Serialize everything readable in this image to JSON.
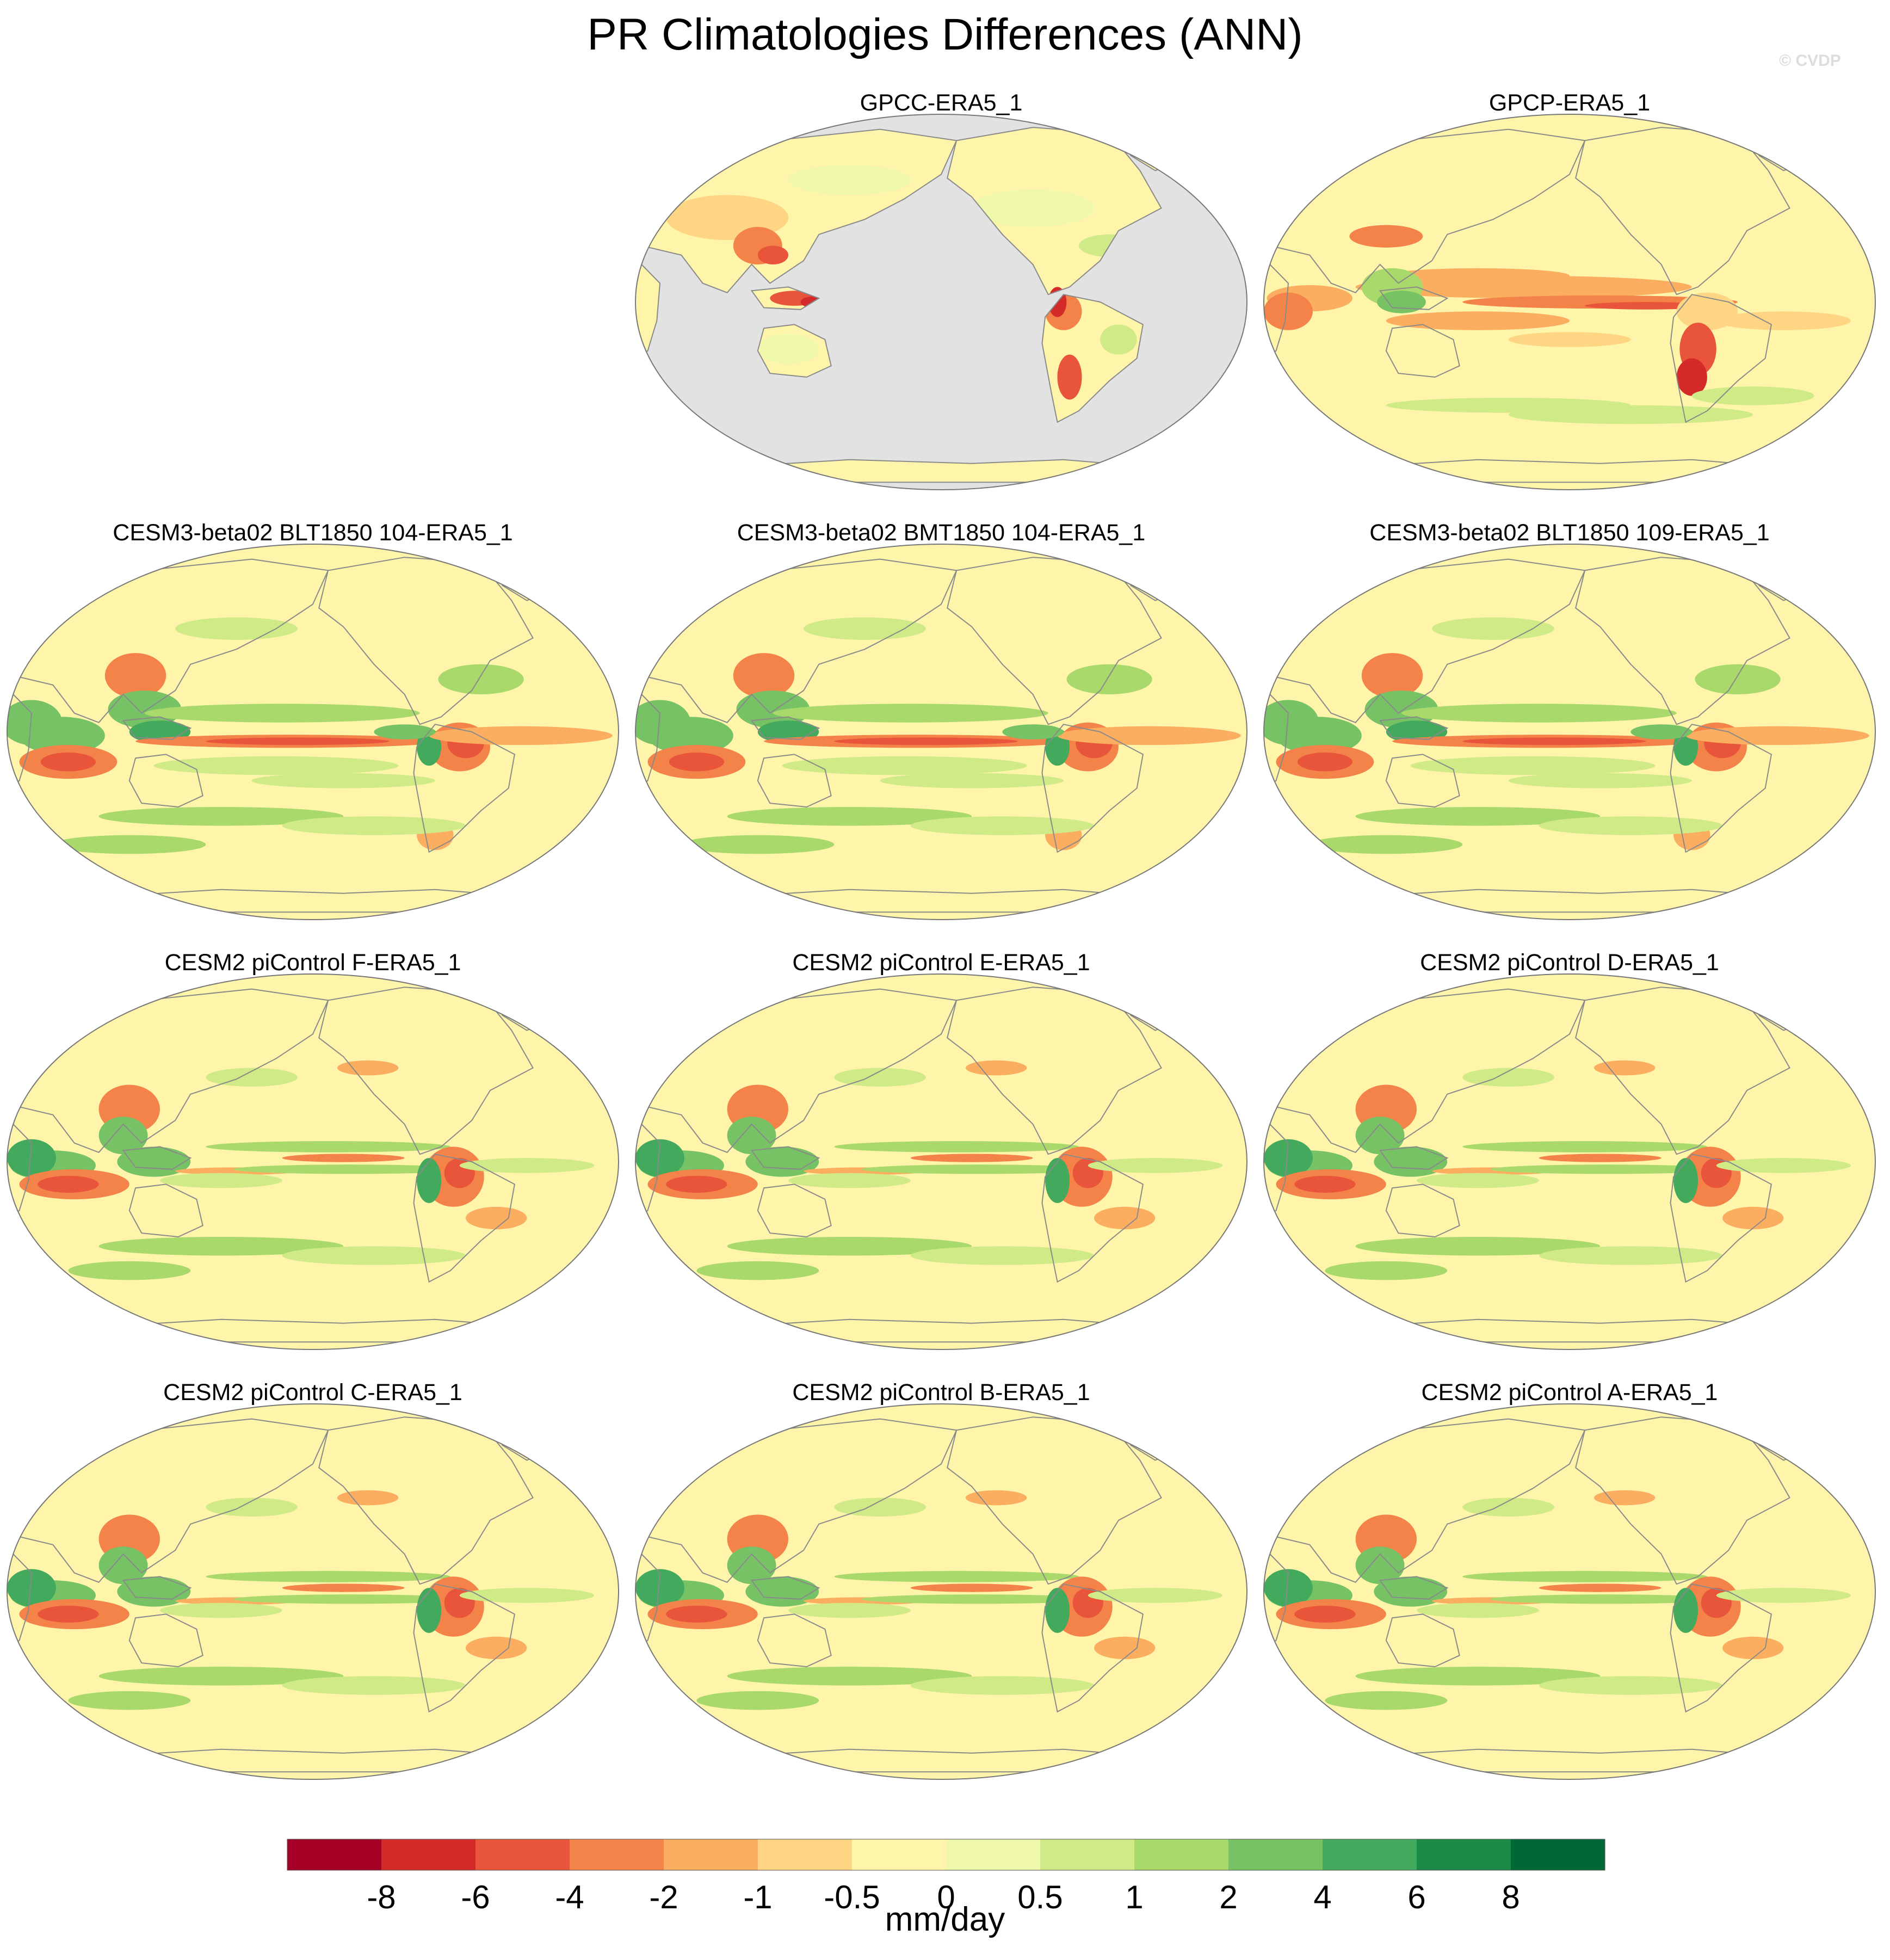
{
  "page": {
    "title": "PR Climatologies Differences (ANN)",
    "watermark": "© CVDP"
  },
  "chart_data": {
    "type": "heatmap",
    "title": "PR Climatologies Differences (ANN)",
    "projection": "Robinson, centered on Pacific",
    "panels": [
      {
        "title": "GPCC-ERA5_1",
        "row": 0,
        "col": 1,
        "variant": "land_only"
      },
      {
        "title": "GPCP-ERA5_1",
        "row": 0,
        "col": 2,
        "variant": "obs"
      },
      {
        "title": "CESM3-beta02 BLT1850 104-ERA5_1",
        "row": 1,
        "col": 0,
        "variant": "cesm3"
      },
      {
        "title": "CESM3-beta02 BMT1850 104-ERA5_1",
        "row": 1,
        "col": 1,
        "variant": "cesm3"
      },
      {
        "title": "CESM3-beta02 BLT1850 109-ERA5_1",
        "row": 1,
        "col": 2,
        "variant": "cesm3"
      },
      {
        "title": "CESM2 piControl F-ERA5_1",
        "row": 2,
        "col": 0,
        "variant": "cesm2"
      },
      {
        "title": "CESM2 piControl E-ERA5_1",
        "row": 2,
        "col": 1,
        "variant": "cesm2"
      },
      {
        "title": "CESM2 piControl D-ERA5_1",
        "row": 2,
        "col": 2,
        "variant": "cesm2"
      },
      {
        "title": "CESM2 piControl C-ERA5_1",
        "row": 3,
        "col": 0,
        "variant": "cesm2"
      },
      {
        "title": "CESM2 piControl B-ERA5_1",
        "row": 3,
        "col": 1,
        "variant": "cesm2"
      },
      {
        "title": "CESM2 piControl A-ERA5_1",
        "row": 3,
        "col": 2,
        "variant": "cesm2"
      }
    ],
    "colorbar": {
      "units": "mm/day",
      "tick_labels": [
        "-8",
        "-6",
        "-4",
        "-2",
        "-1",
        "-0.5",
        "0",
        "0.5",
        "1",
        "2",
        "4",
        "6",
        "8"
      ],
      "colors": [
        "#a50026",
        "#d42b2a",
        "#e8553a",
        "#f4834a",
        "#fcae60",
        "#fed683",
        "#fef4aa",
        "#f0f8ab",
        "#d0ea87",
        "#a8d96a",
        "#76c265",
        "#43a95c",
        "#1c8b48",
        "#006837"
      ]
    },
    "colors": {
      "land_mask": "#e2e2e2",
      "coast": "#8a8a8a",
      "outline": "#777777"
    }
  }
}
